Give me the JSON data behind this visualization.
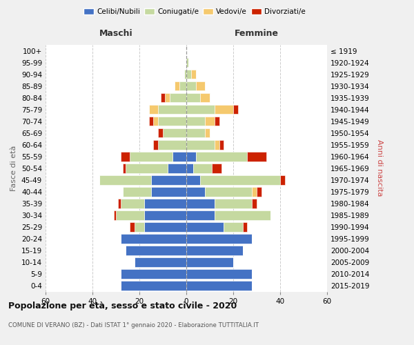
{
  "age_groups_bottom_to_top": [
    "0-4",
    "5-9",
    "10-14",
    "15-19",
    "20-24",
    "25-29",
    "30-34",
    "35-39",
    "40-44",
    "45-49",
    "50-54",
    "55-59",
    "60-64",
    "65-69",
    "70-74",
    "75-79",
    "80-84",
    "85-89",
    "90-94",
    "95-99",
    "100+"
  ],
  "birth_years_bottom_to_top": [
    "2015-2019",
    "2010-2014",
    "2005-2009",
    "2000-2004",
    "1995-1999",
    "1990-1994",
    "1985-1989",
    "1980-1984",
    "1975-1979",
    "1970-1974",
    "1965-1969",
    "1960-1964",
    "1955-1959",
    "1950-1954",
    "1945-1949",
    "1940-1944",
    "1935-1939",
    "1930-1934",
    "1925-1929",
    "1920-1924",
    "≤ 1919"
  ],
  "males": {
    "celibi": [
      28,
      28,
      22,
      26,
      28,
      18,
      18,
      18,
      15,
      15,
      8,
      6,
      0,
      0,
      0,
      0,
      0,
      0,
      0,
      0,
      0
    ],
    "coniugati": [
      0,
      0,
      0,
      0,
      0,
      4,
      12,
      10,
      12,
      22,
      18,
      18,
      12,
      10,
      12,
      12,
      7,
      3,
      1,
      0,
      0
    ],
    "vedovi": [
      0,
      0,
      0,
      0,
      0,
      0,
      0,
      0,
      0,
      0,
      0,
      0,
      0,
      0,
      2,
      4,
      2,
      2,
      0,
      0,
      0
    ],
    "divorziati": [
      0,
      0,
      0,
      0,
      0,
      2,
      1,
      1,
      0,
      0,
      1,
      4,
      2,
      2,
      2,
      0,
      2,
      0,
      0,
      0,
      0
    ]
  },
  "females": {
    "nubili": [
      28,
      28,
      20,
      24,
      28,
      16,
      12,
      12,
      8,
      6,
      3,
      4,
      0,
      0,
      0,
      0,
      0,
      0,
      0,
      0,
      0
    ],
    "coniugate": [
      0,
      0,
      0,
      0,
      0,
      8,
      24,
      16,
      20,
      34,
      8,
      22,
      12,
      8,
      8,
      12,
      6,
      4,
      2,
      1,
      0
    ],
    "vedove": [
      0,
      0,
      0,
      0,
      0,
      0,
      0,
      0,
      2,
      0,
      0,
      0,
      2,
      2,
      4,
      8,
      4,
      4,
      2,
      0,
      0
    ],
    "divorziate": [
      0,
      0,
      0,
      0,
      0,
      2,
      0,
      2,
      2,
      2,
      4,
      8,
      2,
      0,
      2,
      2,
      0,
      0,
      0,
      0,
      0
    ]
  },
  "colors": {
    "celibi": "#4472c4",
    "coniugati": "#c5d9a0",
    "vedovi": "#f5c96e",
    "divorziati": "#cc2200"
  },
  "xlim": 60,
  "title": "Popolazione per età, sesso e stato civile - 2020",
  "subtitle": "COMUNE DI VERANO (BZ) - Dati ISTAT 1° gennaio 2020 - Elaborazione TUTTITALIA.IT",
  "ylabel_left": "Fasce di età",
  "ylabel_right": "Anni di nascita",
  "xlabel_left": "Maschi",
  "xlabel_right": "Femmine",
  "bg_color": "#f0f0f0",
  "plot_bg": "#ffffff",
  "grid_color": "#cccccc"
}
